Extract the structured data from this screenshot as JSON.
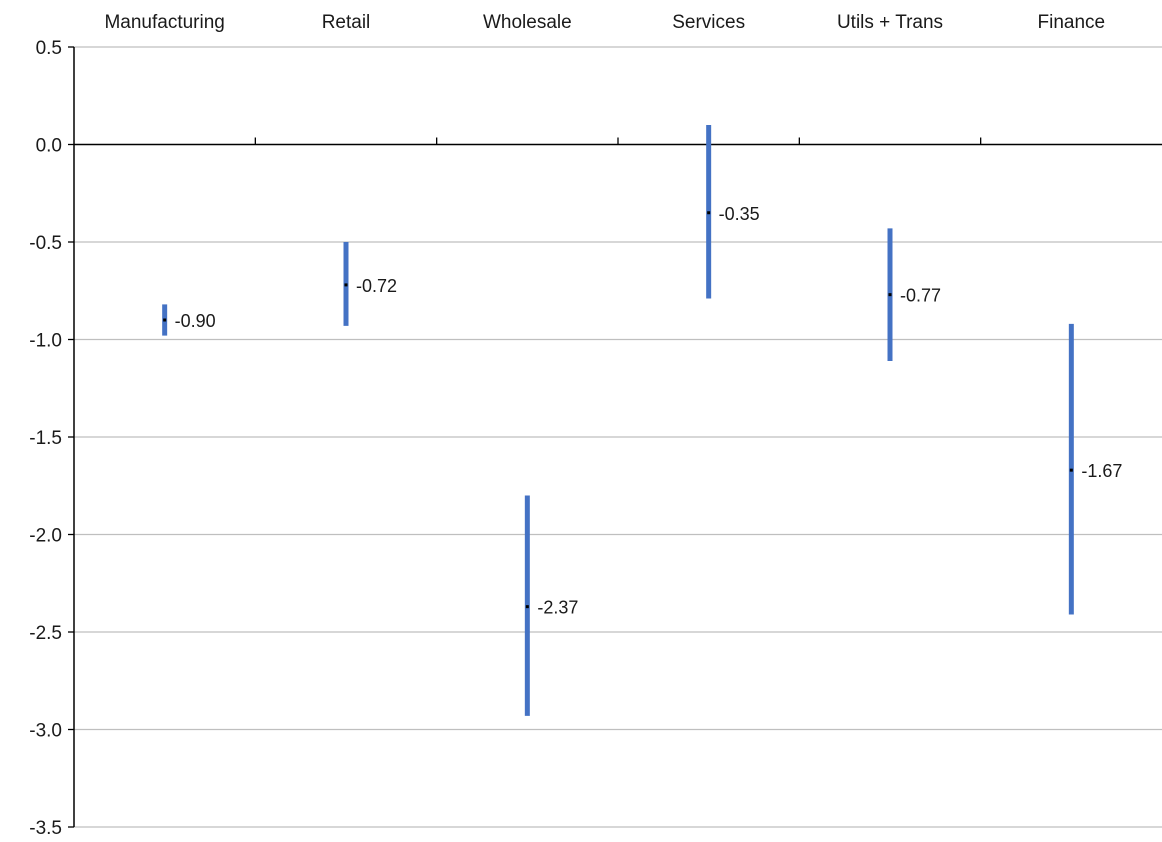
{
  "chart_data": {
    "type": "range",
    "title": "",
    "xlabel": "",
    "ylabel": "",
    "ylim": [
      -3.5,
      0.5
    ],
    "yticks": [
      0.5,
      0.0,
      -0.5,
      -1.0,
      -1.5,
      -2.0,
      -2.5,
      -3.0,
      -3.5
    ],
    "ytick_labels": [
      "0.5",
      "0.0",
      "-0.5",
      "-1.0",
      "-1.5",
      "-2.0",
      "-2.5",
      "-3.0",
      "-3.5"
    ],
    "grid": true,
    "categories": [
      "Manufacturing",
      "Retail",
      "Wholesale",
      "Services",
      "Utils + Trans",
      "Finance"
    ],
    "series": [
      {
        "low": [
          -0.98,
          -0.93,
          -2.93,
          -0.79,
          -1.11,
          -2.41
        ],
        "high": [
          -0.82,
          -0.5,
          -1.8,
          0.1,
          -0.43,
          -0.92
        ],
        "point": [
          -0.9,
          -0.72,
          -2.37,
          -0.35,
          -0.77,
          -1.67
        ],
        "point_labels": [
          "-0.90",
          "-0.72",
          "-2.37",
          "-0.35",
          "-0.77",
          "-1.67"
        ]
      }
    ],
    "colors": {
      "bar": "#4472C4",
      "point": "#000000",
      "grid": "#bfbfbf",
      "axis": "#000000"
    }
  }
}
